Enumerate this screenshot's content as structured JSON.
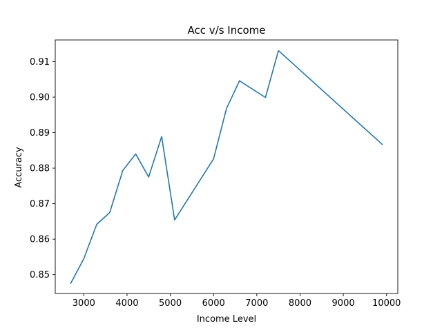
{
  "chart_data": {
    "type": "line",
    "title": "Acc v/s Income",
    "xlabel": "Income Level",
    "ylabel": "Accuracy",
    "xlim": [
      2340,
      10260
    ],
    "ylim": [
      0.8447,
      0.9161
    ],
    "xticks": [
      3000,
      4000,
      5000,
      6000,
      7000,
      8000,
      9000,
      10000
    ],
    "xtick_labels": [
      "3000",
      "4000",
      "5000",
      "6000",
      "7000",
      "8000",
      "9000",
      "10000"
    ],
    "yticks": [
      0.85,
      0.86,
      0.87,
      0.88,
      0.89,
      0.9,
      0.91
    ],
    "ytick_labels": [
      "0.85",
      "0.86",
      "0.87",
      "0.88",
      "0.89",
      "0.90",
      "0.91"
    ],
    "grid": false,
    "series": [
      {
        "color": "#1f77b4",
        "x": [
          2700,
          3000,
          3300,
          3600,
          3900,
          4200,
          4500,
          4800,
          5100,
          6000,
          6300,
          6600,
          7200,
          7500,
          9900
        ],
        "y": [
          0.8476,
          0.8545,
          0.8642,
          0.8675,
          0.8793,
          0.884,
          0.8775,
          0.8889,
          0.8654,
          0.8826,
          0.8968,
          0.9046,
          0.8999,
          0.9131,
          0.8867
        ]
      }
    ]
  }
}
